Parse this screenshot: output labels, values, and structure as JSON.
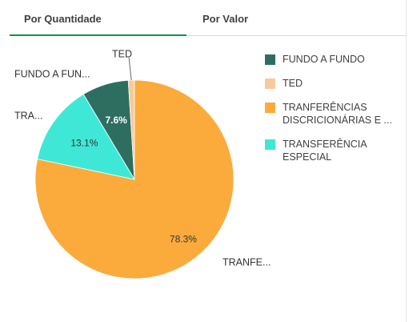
{
  "tabs": [
    "Por Quantidade",
    "Por Valor"
  ],
  "chart_data": {
    "type": "pie",
    "categories": [
      "FUNDO A FUNDO",
      "TED",
      "TRANFERÊNCIAS DISCRICIONÁRIAS E ...",
      "TRANSFERÊNCIA ESPECIAL"
    ],
    "values": [
      7.6,
      1.0,
      78.3,
      13.1
    ],
    "value_labels": [
      "7.6%",
      null,
      "78.3%",
      "13.1%"
    ],
    "slice_labels": [
      "FUNDO A FUN...",
      "TED",
      "TRANFE...",
      "TRA..."
    ],
    "colors": [
      "#2d6e61",
      "#f8c99d",
      "#fbab3c",
      "#3fe8d6"
    ],
    "legend": "right"
  }
}
